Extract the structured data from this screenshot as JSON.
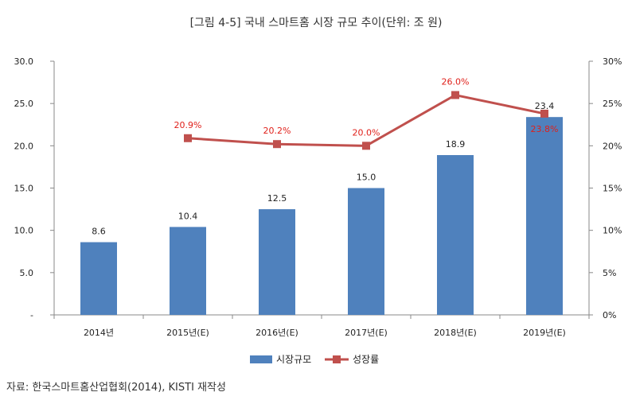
{
  "figure": {
    "title": "[그림 4-5] 국내 스마트홈 시장 규모 추이(단위: 조 원)",
    "source": "자료: 한국스마트홈산업협회(2014), KISTI 재작성"
  },
  "chart_data": {
    "type": "bar",
    "categories": [
      "2014년",
      "2015년(E)",
      "2016년(E)",
      "2017년(E)",
      "2018년(E)",
      "2019년(E)"
    ],
    "series": [
      {
        "name": "시장규모",
        "type": "bar",
        "axis": "left",
        "values": [
          8.6,
          10.4,
          12.5,
          15.0,
          18.9,
          23.4
        ],
        "labels": [
          "8.6",
          "10.4",
          "12.5",
          "15.0",
          "18.9",
          "23.4"
        ],
        "color": "#4f81bd"
      },
      {
        "name": "성장률",
        "type": "line",
        "axis": "right",
        "values": [
          null,
          20.9,
          20.2,
          20.0,
          26.0,
          23.8
        ],
        "labels": [
          "",
          "20.9%",
          "20.2%",
          "20.0%",
          "26.0%",
          "23.8%"
        ],
        "color": "#c0504d",
        "label_color": "#e0201a"
      }
    ],
    "y_left": {
      "ylim": [
        0,
        30
      ],
      "ticks": [
        "-",
        "5.0",
        "10.0",
        "15.0",
        "20.0",
        "25.0",
        "30.0"
      ]
    },
    "y_right": {
      "ylim": [
        0,
        30
      ],
      "ticks": [
        "0%",
        "5%",
        "10%",
        "15%",
        "20%",
        "25%",
        "30%"
      ]
    },
    "grid": false,
    "legend": "bottom"
  }
}
